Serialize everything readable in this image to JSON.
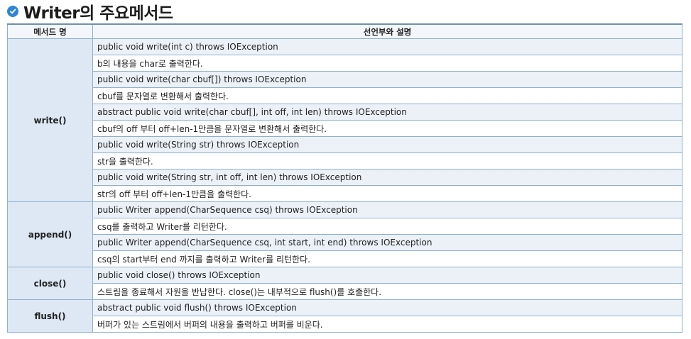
{
  "title": "Writer의 주요메서드",
  "headers": {
    "method": "메서드 명",
    "desc": "선언부와 설명"
  },
  "groups": [
    {
      "method": "write()",
      "rows": [
        {
          "sig": "public void write(int c) throws IOException",
          "desc": "b의 내용을 char로 출력한다."
        },
        {
          "sig": "public void write(char cbuf[]) throws IOException",
          "desc": "cbuf를 문자열로 변환해서 출력한다."
        },
        {
          "sig": "abstract public void write(char cbuf[], int off, int len) throws IOException",
          "desc": "cbuf의 off 부터 off+len-1만큼을 문자열로 변환해서 출력한다."
        },
        {
          "sig": "public void write(String str) throws IOException",
          "desc": "str을 출력한다."
        },
        {
          "sig": "public void write(String str, int off, int len) throws IOException",
          "desc": "str의 off 부터 off+len-1만큼을 출력한다."
        }
      ]
    },
    {
      "method": "append()",
      "rows": [
        {
          "sig": "public Writer append(CharSequence csq) throws IOException",
          "desc": "csq를 출력하고 Writer를 리턴한다."
        },
        {
          "sig": "public Writer append(CharSequence csq, int start, int end) throws IOException",
          "desc": "csq의 start부터 end 까지를 출력하고 Writer를 리턴한다."
        }
      ]
    },
    {
      "method": "close()",
      "rows": [
        {
          "sig": "public void close() throws IOException",
          "desc": "스트림을 종료해서 자원을 반납한다. close()는 내부적으로 flush()를 호출한다."
        }
      ]
    },
    {
      "method": "flush()",
      "rows": [
        {
          "sig": "abstract public void flush() throws IOException",
          "desc": "버퍼가 있는 스트림에서 버퍼의 내용을 출력하고 버퍼를 비운다."
        }
      ]
    }
  ],
  "colors": {
    "accent": "#2f86d6",
    "sig_bg": "#ecf1f8",
    "method_bg": "#dde8f4",
    "border": "#8fb0d2"
  }
}
